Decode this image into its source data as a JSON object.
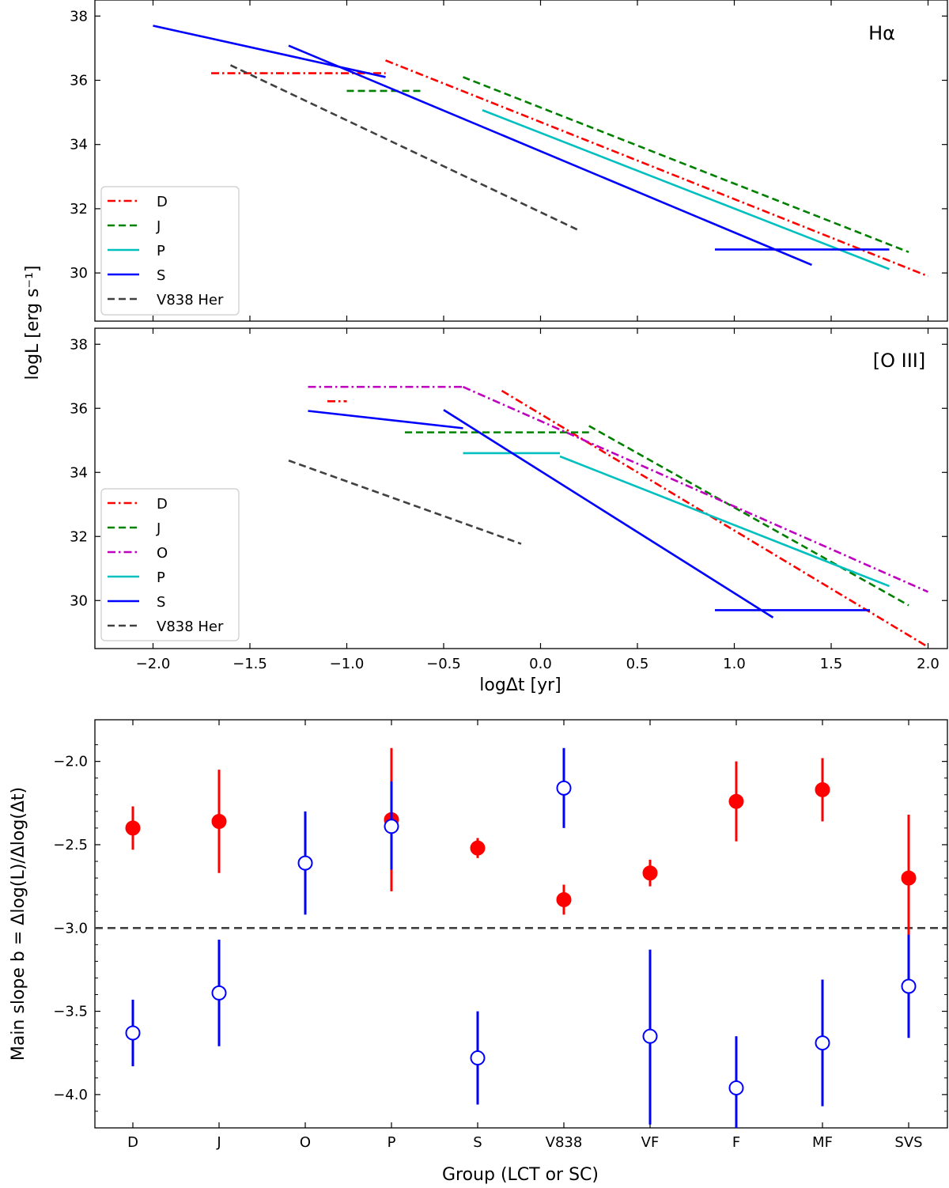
{
  "figure": {
    "ylabel_top": "logL [erg s⁻¹]",
    "xlabel_top": "logΔt [yr]",
    "ylabel_bottom": "Main slope b = Δlog(L)/Δlog(Δt)",
    "xlabel_bottom": "Group (LCT or SC)"
  },
  "chart_data": [
    {
      "type": "line",
      "panel": "top",
      "title": "Hα",
      "xlim": [
        -2.3,
        2.1
      ],
      "ylim": [
        28.5,
        38.5
      ],
      "xticks": [
        -2.0,
        -1.5,
        -1.0,
        -0.5,
        0.0,
        0.5,
        1.0,
        1.5,
        2.0
      ],
      "xtick_labels": [
        "",
        "",
        "",
        "",
        "",
        "",
        "",
        "",
        ""
      ],
      "yticks": [
        30,
        32,
        34,
        36,
        38
      ],
      "ytick_labels": [
        "30",
        "32",
        "34",
        "36",
        "38"
      ],
      "legend": [
        "D",
        "J",
        "P",
        "S",
        "V838 Her"
      ],
      "legend_position": "lower-left",
      "series": [
        {
          "name": "D",
          "color": "#ff0000",
          "dash": "dashdot",
          "segments": [
            [
              [
                -1.7,
                36.22
              ],
              [
                -0.8,
                36.22
              ]
            ],
            [
              [
                -0.8,
                36.62
              ],
              [
                2.0,
                29.9
              ]
            ]
          ]
        },
        {
          "name": "J",
          "color": "#008000",
          "dash": "dashed",
          "segments": [
            [
              [
                -1.0,
                35.67
              ],
              [
                -0.6,
                35.67
              ]
            ],
            [
              [
                -0.4,
                36.1
              ],
              [
                1.9,
                30.65
              ]
            ]
          ]
        },
        {
          "name": "P",
          "color": "#00bfbf",
          "dash": "solid",
          "segments": [
            [
              [
                -0.3,
                35.07
              ],
              [
                1.8,
                30.12
              ]
            ]
          ]
        },
        {
          "name": "S",
          "color": "#0000ff",
          "dash": "solid",
          "segments": [
            [
              [
                -2.0,
                37.7
              ],
              [
                -0.8,
                36.1
              ]
            ],
            [
              [
                -1.3,
                37.08
              ],
              [
                1.4,
                30.25
              ]
            ],
            [
              [
                0.9,
                30.73
              ],
              [
                1.8,
                30.73
              ]
            ]
          ]
        },
        {
          "name": "V838 Her",
          "color": "#404040",
          "dash": "dashed",
          "segments": [
            [
              [
                -1.6,
                36.47
              ],
              [
                0.2,
                31.32
              ]
            ]
          ]
        }
      ]
    },
    {
      "type": "line",
      "panel": "middle",
      "title": "[O III]",
      "xlim": [
        -2.3,
        2.1
      ],
      "ylim": [
        28.5,
        38.5
      ],
      "xticks": [
        -2.0,
        -1.5,
        -1.0,
        -0.5,
        0.0,
        0.5,
        1.0,
        1.5,
        2.0
      ],
      "xtick_labels": [
        "−2.0",
        "−1.5",
        "−1.0",
        "−0.5",
        "0.0",
        "0.5",
        "1.0",
        "1.5",
        "2.0"
      ],
      "yticks": [
        30,
        32,
        34,
        36,
        38
      ],
      "ytick_labels": [
        "30",
        "32",
        "34",
        "36",
        "38"
      ],
      "legend": [
        "D",
        "J",
        "O",
        "P",
        "S",
        "V838 Her"
      ],
      "legend_position": "lower-left",
      "series": [
        {
          "name": "D",
          "color": "#ff0000",
          "dash": "dashdot",
          "segments": [
            [
              [
                -1.1,
                36.22
              ],
              [
                -1.0,
                36.22
              ]
            ],
            [
              [
                -0.2,
                36.55
              ],
              [
                2.0,
                28.55
              ]
            ]
          ]
        },
        {
          "name": "J",
          "color": "#008000",
          "dash": "dashed",
          "segments": [
            [
              [
                -0.7,
                35.25
              ],
              [
                0.25,
                35.25
              ]
            ],
            [
              [
                0.25,
                35.45
              ],
              [
                1.9,
                29.85
              ]
            ]
          ]
        },
        {
          "name": "O",
          "color": "#bf00bf",
          "dash": "dashdot",
          "segments": [
            [
              [
                -1.2,
                36.67
              ],
              [
                -0.4,
                36.67
              ]
            ],
            [
              [
                -0.4,
                36.67
              ],
              [
                2.0,
                30.27
              ]
            ]
          ]
        },
        {
          "name": "P",
          "color": "#00bfbf",
          "dash": "solid",
          "segments": [
            [
              [
                -0.4,
                34.6
              ],
              [
                0.1,
                34.6
              ]
            ],
            [
              [
                0.1,
                34.5
              ],
              [
                1.8,
                30.45
              ]
            ]
          ]
        },
        {
          "name": "S",
          "color": "#0000ff",
          "dash": "solid",
          "segments": [
            [
              [
                -1.2,
                35.92
              ],
              [
                -0.4,
                35.38
              ]
            ],
            [
              [
                -0.5,
                35.95
              ],
              [
                1.2,
                29.47
              ]
            ],
            [
              [
                0.9,
                29.7
              ],
              [
                1.7,
                29.7
              ]
            ]
          ]
        },
        {
          "name": "V838 Her",
          "color": "#404040",
          "dash": "dashed",
          "segments": [
            [
              [
                -1.3,
                34.37
              ],
              [
                -0.1,
                31.77
              ]
            ]
          ]
        }
      ]
    },
    {
      "type": "scatter",
      "panel": "bottom",
      "categories": [
        "D",
        "J",
        "O",
        "P",
        "S",
        "V838",
        "VF",
        "F",
        "MF",
        "SVS"
      ],
      "ylim": [
        -4.2,
        -1.75
      ],
      "yticks": [
        -4.0,
        -3.5,
        -3.0,
        -2.5,
        -2.0
      ],
      "ytick_labels": [
        "−4.0",
        "−3.5",
        "−3.0",
        "−2.5",
        "−2.0"
      ],
      "reference_line": {
        "y": -3.0,
        "color": "#404040",
        "style": "dashed"
      },
      "series": [
        {
          "name": "Hα",
          "color": "#ff0000",
          "marker": "filled-circle",
          "points": [
            {
              "category": "D",
              "y": -2.4,
              "low": -2.53,
              "high": -2.27
            },
            {
              "category": "J",
              "y": -2.36,
              "low": -2.67,
              "high": -2.05
            },
            {
              "category": "P",
              "y": -2.35,
              "low": -2.78,
              "high": -1.92
            },
            {
              "category": "S",
              "y": -2.52,
              "low": -2.58,
              "high": -2.46
            },
            {
              "category": "V838",
              "y": -2.83,
              "low": -2.92,
              "high": -2.74
            },
            {
              "category": "VF",
              "y": -2.67,
              "low": -2.75,
              "high": -2.59
            },
            {
              "category": "F",
              "y": -2.24,
              "low": -2.48,
              "high": -2.0
            },
            {
              "category": "MF",
              "y": -2.17,
              "low": -2.36,
              "high": -1.98
            },
            {
              "category": "SVS",
              "y": -2.7,
              "low": -3.08,
              "high": -2.32
            }
          ]
        },
        {
          "name": "[O III]",
          "color": "#0000ff",
          "marker": "open-circle",
          "points": [
            {
              "category": "D",
              "y": -3.63,
              "low": -3.83,
              "high": -3.43
            },
            {
              "category": "J",
              "y": -3.39,
              "low": -3.71,
              "high": -3.07
            },
            {
              "category": "O",
              "y": -2.61,
              "low": -2.92,
              "high": -2.3
            },
            {
              "category": "P",
              "y": -2.39,
              "low": -2.65,
              "high": -2.12
            },
            {
              "category": "S",
              "y": -3.78,
              "low": -4.06,
              "high": -3.5
            },
            {
              "category": "V838",
              "y": -2.16,
              "low": -2.4,
              "high": -1.92
            },
            {
              "category": "VF",
              "y": -3.65,
              "low": -4.18,
              "high": -3.13
            },
            {
              "category": "F",
              "y": -3.96,
              "low": -4.25,
              "high": -3.65
            },
            {
              "category": "MF",
              "y": -3.69,
              "low": -4.07,
              "high": -3.31
            },
            {
              "category": "SVS",
              "y": -3.35,
              "low": -3.66,
              "high": -3.04
            }
          ]
        }
      ]
    }
  ]
}
